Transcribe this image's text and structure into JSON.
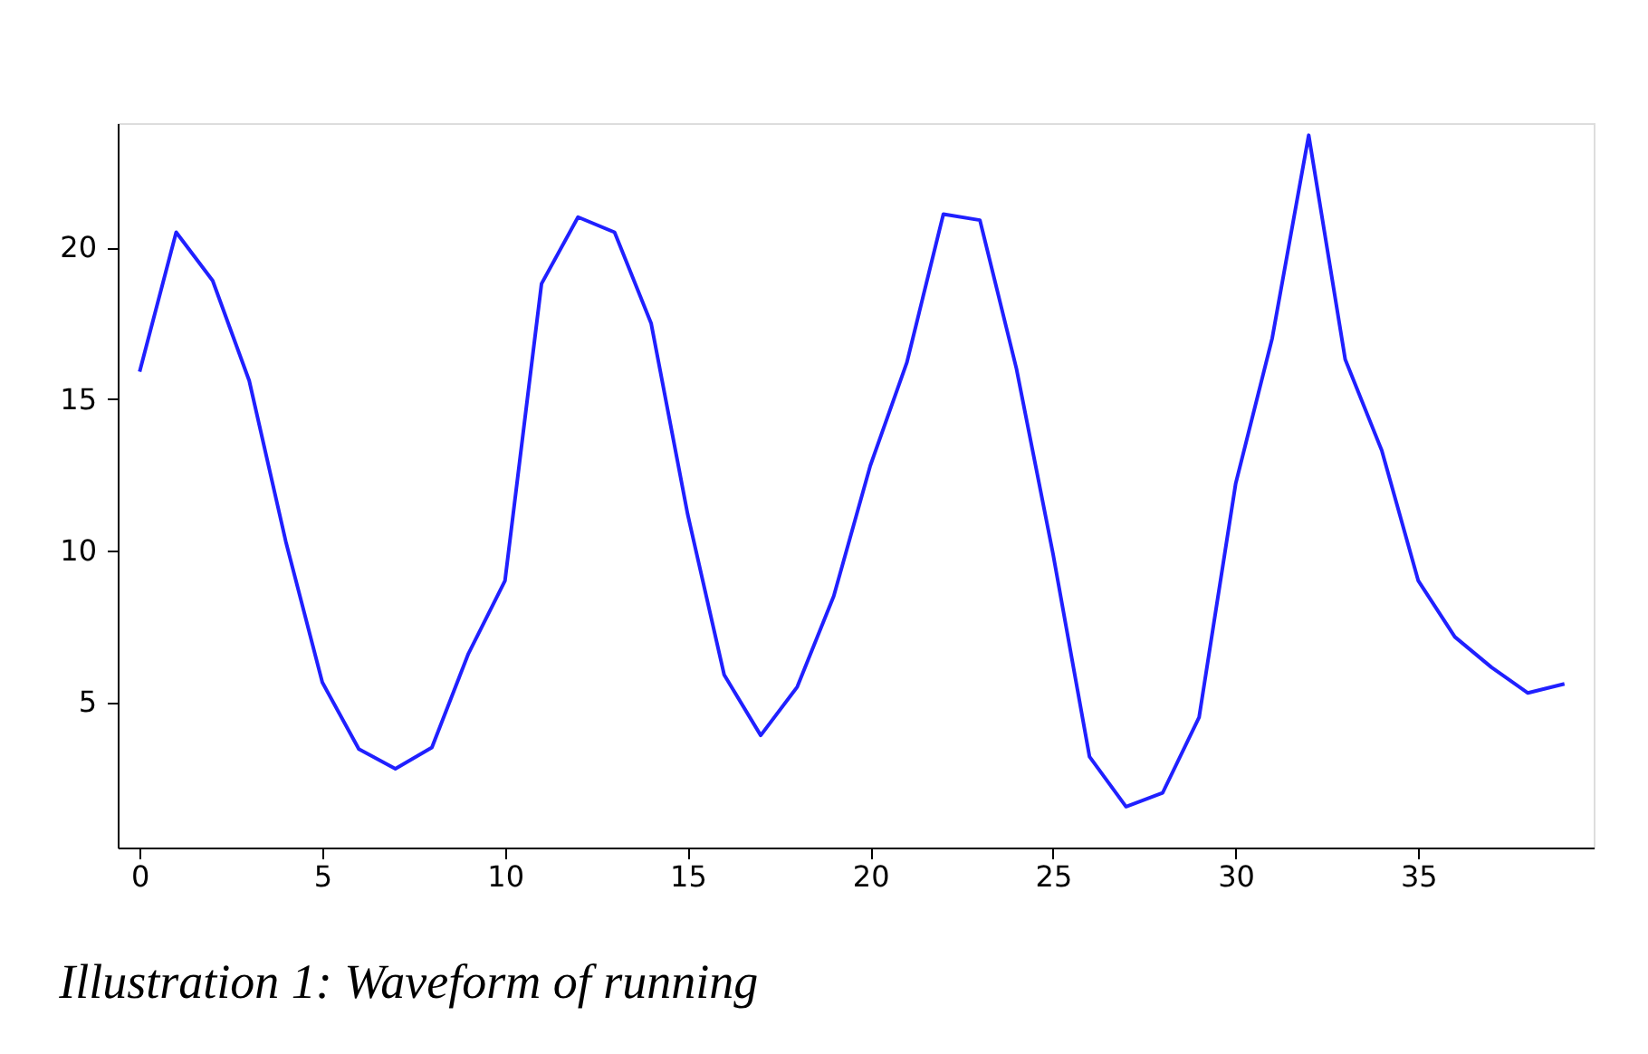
{
  "chart_data": {
    "type": "line",
    "x": [
      0,
      1,
      2,
      3,
      4,
      5,
      6,
      7,
      8,
      9,
      10,
      11,
      12,
      13,
      14,
      15,
      16,
      17,
      18,
      19,
      20,
      21,
      22,
      23,
      24,
      25,
      26,
      27,
      28,
      29,
      30,
      31,
      32,
      33,
      34,
      35,
      36,
      37,
      38,
      39
    ],
    "series": [
      {
        "color": "#2020ff",
        "values": [
          15.9,
          20.5,
          18.9,
          15.6,
          10.3,
          5.65,
          3.45,
          2.8,
          3.5,
          6.6,
          9.0,
          18.8,
          21.0,
          20.5,
          17.5,
          11.2,
          5.9,
          3.9,
          5.5,
          8.5,
          12.8,
          16.2,
          21.1,
          20.9,
          16.0,
          9.9,
          3.2,
          1.55,
          2.0,
          4.5,
          12.2,
          17.0,
          23.7,
          16.3,
          13.3,
          9.0,
          7.15,
          6.15,
          5.3,
          5.6
        ]
      }
    ],
    "xlim": [
      -0.6,
      39.8
    ],
    "ylim": [
      0.2,
      24.1
    ],
    "xticks": [
      0,
      5,
      10,
      15,
      20,
      25,
      30,
      35
    ],
    "yticks": [
      5,
      10,
      15,
      20
    ],
    "grid": false,
    "legend": false,
    "marker": "none",
    "line_style": "solid",
    "annotations": [
      "Illustration 1: Waveform of running"
    ]
  }
}
